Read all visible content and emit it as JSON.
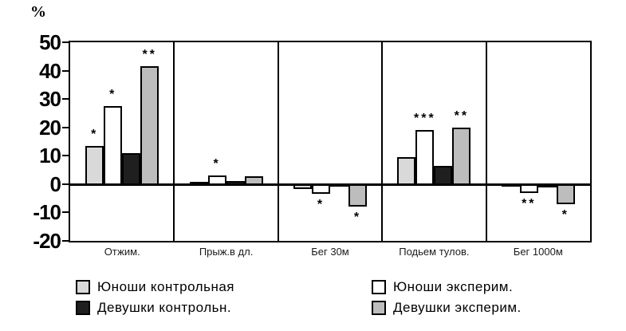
{
  "chart_data": {
    "type": "bar",
    "title": "",
    "ylabel": "%",
    "xlabel": "",
    "ylim": [
      -20,
      50
    ],
    "yticks": [
      50,
      40,
      30,
      20,
      10,
      0,
      -10,
      -20
    ],
    "grid": false,
    "panel_separators": true,
    "legend_position": "bottom-two-columns",
    "categories": [
      "Отжим.",
      "Прыж.в дл.",
      "Бег 30м",
      "Подьем тулов.",
      "Бег 1000м"
    ],
    "series": [
      {
        "name": "Юноши контрольная",
        "color": "#d9d9d9",
        "values": [
          13.5,
          0.7,
          -1.8,
          9.5,
          -0.7
        ],
        "annotations": [
          "*",
          "",
          "",
          "",
          ""
        ]
      },
      {
        "name": "Юноши эксперим.",
        "color": "#ffffff",
        "values": [
          27.5,
          3,
          -3.5,
          19,
          -3
        ],
        "annotations": [
          "*",
          "*",
          "*",
          "***",
          "**"
        ]
      },
      {
        "name": "Девушки контрольн.",
        "color": "#1f1f1f",
        "values": [
          11,
          1,
          -0.8,
          6.5,
          -1.2
        ],
        "annotations": [
          "",
          "",
          "",
          "",
          ""
        ]
      },
      {
        "name": "Девушки эксперим.",
        "color": "#bdbdbd",
        "values": [
          41.5,
          2.7,
          -8,
          20,
          -7
        ],
        "annotations": [
          "**",
          "",
          "*",
          "**",
          "*"
        ]
      }
    ]
  }
}
